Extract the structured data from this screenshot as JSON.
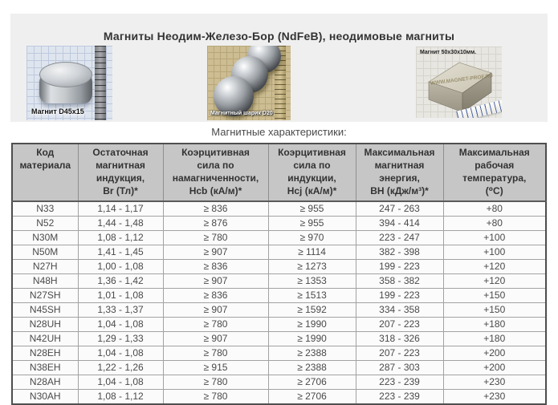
{
  "page": {
    "title": "Магниты Неодим-Железо-Бор (NdFeB), неодимовые магниты",
    "subtitle": "Магнитные характеристики:"
  },
  "images": [
    {
      "name": "disc-magnet-photo",
      "label": "Магнит D45x15"
    },
    {
      "name": "ball-magnets-photo",
      "label": "Магнитный шарик D20"
    },
    {
      "name": "block-magnet-photo",
      "label": "Магнит 50x30x10мм.",
      "watermark": "WWW.MAGNET-PROF.RU"
    }
  ],
  "table": {
    "headers": [
      "Код\nматериала",
      "Остаточная\nмагнитная\nиндукция,\nBr (Тл)*",
      "Коэрцитивная\nсила по\nнамагниченности,\nHcb (кА/м)*",
      "Коэрцитивная\nсила по\nиндукции,\nHcj (кА/м)*",
      "Максимальная\nмагнитная\nэнергия,\nBH (кДж/м³)*",
      "Максимальная\nрабочая\nтемпература,\n(⁰C)"
    ],
    "rows": [
      [
        "N33",
        "1,14 - 1,17",
        "≥ 836",
        "≥ 955",
        "247 - 263",
        "+80"
      ],
      [
        "N52",
        "1,44 - 1,48",
        "≥ 876",
        "≥ 955",
        "394 - 414",
        "+80"
      ],
      [
        "N30M",
        "1,08 - 1,12",
        "≥ 780",
        "≥ 970",
        "223 - 247",
        "+100"
      ],
      [
        "N50M",
        "1,41 - 1,45",
        "≥ 907",
        "≥ 1114",
        "382 - 398",
        "+100"
      ],
      [
        "N27H",
        "1,00 - 1,08",
        "≥ 836",
        "≥ 1273",
        "199 - 223",
        "+120"
      ],
      [
        "N48H",
        "1,36 - 1,42",
        "≥ 907",
        "≥ 1353",
        "358 - 382",
        "+120"
      ],
      [
        "N27SH",
        "1,01 - 1,08",
        "≥ 836",
        "≥ 1513",
        "199 - 223",
        "+150"
      ],
      [
        "N45SH",
        "1,33 - 1,37",
        "≥ 907",
        "≥ 1592",
        "334 - 358",
        "+150"
      ],
      [
        "N28UH",
        "1,04 - 1,08",
        "≥ 780",
        "≥ 1990",
        "207 - 223",
        "+180"
      ],
      [
        "N42UH",
        "1,29 - 1,33",
        "≥ 907",
        "≥ 1990",
        "318 - 326",
        "+180"
      ],
      [
        "N28EH",
        "1,04 - 1,08",
        "≥ 780",
        "≥ 2388",
        "207 - 223",
        "+200"
      ],
      [
        "N38EH",
        "1,22 - 1,26",
        "≥ 915",
        "≥ 2388",
        "287 - 303",
        "+200"
      ],
      [
        "N28AH",
        "1,04 - 1,08",
        "≥ 780",
        "≥ 2706",
        "223 - 239",
        "+230"
      ],
      [
        "N30AH",
        "1,08 - 1,12",
        "≥ 780",
        "≥ 2706",
        "223 - 239",
        "+230"
      ]
    ]
  },
  "colors": {
    "panel_bg": "#f0efef",
    "header_bg": "#c6c6c6",
    "table_bg": "#fbfbfb",
    "outer_border": "#4f4f4f",
    "text": "#4a4a4a"
  }
}
